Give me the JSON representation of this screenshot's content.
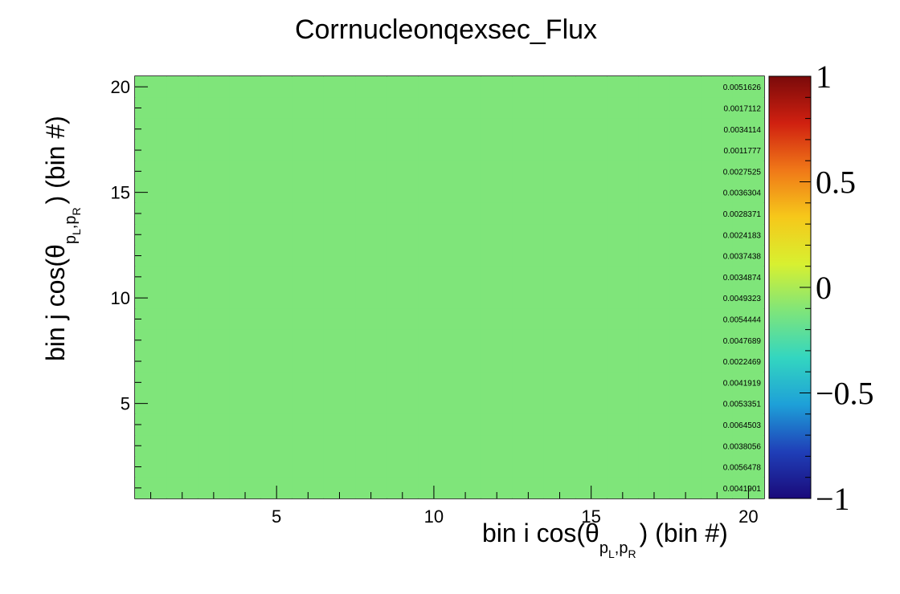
{
  "chart_data": {
    "type": "heatmap",
    "title": "Corrnucleonqexsec_Flux",
    "xlabel": "bin i cos(θ_{p_L,p_R}) (bin #)",
    "ylabel": "bin j cos(θ_{p_L,p_R}) (bin #)",
    "xlabel_parts": {
      "pre": "bin i cos(θ",
      "sub": "p",
      "sub1": "L",
      "comma": ",",
      "sub2": "p",
      "sub3": "R",
      "post": ") (bin #)"
    },
    "ylabel_parts": {
      "pre": "bin j cos(θ",
      "sub": "p",
      "sub1": "L",
      "comma": ",",
      "sub2": "p",
      "sub3": "R",
      "post": ") (bin #)"
    },
    "x_range": [
      0.5,
      20.5
    ],
    "y_range": [
      0.5,
      20.5
    ],
    "x_ticks": [
      "5",
      "10",
      "15",
      "20"
    ],
    "y_ticks": [
      "5",
      "10",
      "15",
      "20"
    ],
    "nbins_x": 20,
    "nbins_y": 20,
    "z_range": [
      -1,
      1
    ],
    "z_ticks": [
      "1",
      "0.5",
      "0",
      "−0.5",
      "−1"
    ],
    "cell_value_display": "all cells ≈ 0 (~1e-3 magnitude); text labels overlap and are illegible",
    "right_column_labels_top_to_bottom": [
      "0.0051626",
      "0.0017112",
      "0.0034114",
      "0.0011777",
      "0.0027525",
      "0.0036304",
      "0.0028371",
      "0.0024183",
      "0.0037438",
      "0.0034874",
      "0.0049323",
      "0.0054444",
      "0.0047689",
      "0.0022469",
      "0.0041919",
      "0.0053351",
      "0.0064503",
      "0.0038056",
      "0.0056478",
      "0.0041901"
    ],
    "cell_color": "#7fe57a",
    "colormap": [
      "#1a0a7a",
      "#1f3fb8",
      "#1ea0d8",
      "#33d6c0",
      "#7fe57a",
      "#d8f030",
      "#f6c81a",
      "#f07818",
      "#d02010",
      "#7a0a0a"
    ]
  }
}
